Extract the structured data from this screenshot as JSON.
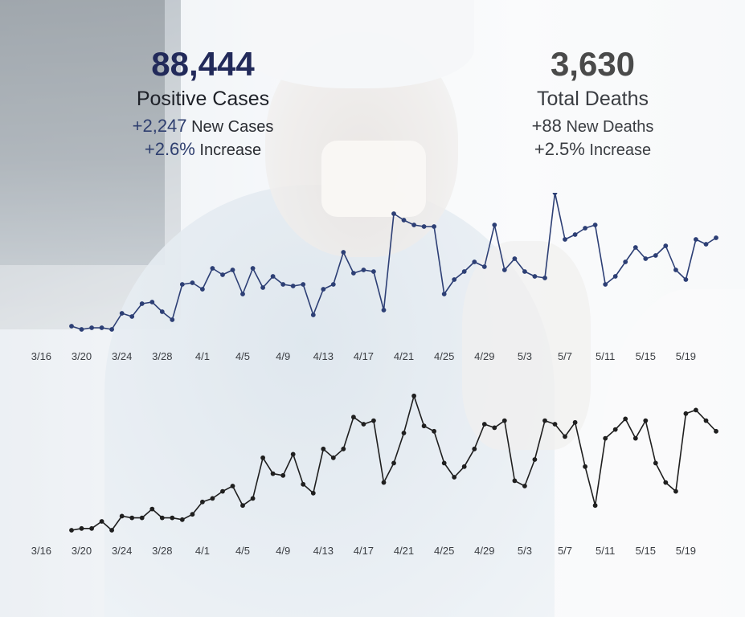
{
  "stats": {
    "cases": {
      "total": "88,444",
      "label": "Positive Cases",
      "new_value": "+2,247",
      "new_label": "New Cases",
      "pct_value": "+2.6%",
      "pct_label": "Increase"
    },
    "deaths": {
      "total": "3,630",
      "label": "Total Deaths",
      "new_value": "+88",
      "new_label": "New Deaths",
      "pct_value": "+2.5%",
      "pct_label": "Increase"
    }
  },
  "colors": {
    "cases_line": "#2d3f75",
    "deaths_line": "#1f1f1f",
    "cases_total": "#222a5a"
  },
  "chart_data": [
    {
      "type": "line",
      "title": "",
      "xlabel": "",
      "ylabel": "",
      "grid": false,
      "x_start": "3/19",
      "x_end": "5/22",
      "tick_labels": [
        "3/16",
        "3/20",
        "3/24",
        "3/28",
        "4/1",
        "4/5",
        "4/9",
        "4/13",
        "4/17",
        "4/21",
        "4/25",
        "4/29",
        "5/3",
        "5/7",
        "5/11",
        "5/15",
        "5/19"
      ],
      "values": [
        0.02,
        0.0,
        0.01,
        0.01,
        0.0,
        0.1,
        0.08,
        0.16,
        0.17,
        0.11,
        0.06,
        0.28,
        0.29,
        0.25,
        0.38,
        0.34,
        0.37,
        0.22,
        0.38,
        0.26,
        0.33,
        0.28,
        0.27,
        0.28,
        0.09,
        0.25,
        0.28,
        0.48,
        0.35,
        0.37,
        0.36,
        0.12,
        0.72,
        0.68,
        0.65,
        0.64,
        0.64,
        0.22,
        0.31,
        0.36,
        0.42,
        0.39,
        0.65,
        0.37,
        0.44,
        0.36,
        0.33,
        0.32,
        0.85,
        0.56,
        0.59,
        0.63,
        0.65,
        0.28,
        0.33,
        0.42,
        0.51,
        0.44,
        0.46,
        0.52,
        0.37,
        0.31,
        0.56,
        0.53,
        0.57
      ]
    },
    {
      "type": "line",
      "title": "",
      "xlabel": "",
      "ylabel": "",
      "grid": false,
      "x_start": "3/19",
      "x_end": "5/22",
      "tick_labels": [
        "3/16",
        "3/20",
        "3/24",
        "3/28",
        "4/1",
        "4/5",
        "4/9",
        "4/13",
        "4/17",
        "4/21",
        "4/25",
        "4/29",
        "5/3",
        "5/7",
        "5/11",
        "5/15",
        "5/19"
      ],
      "values": [
        0.0,
        0.01,
        0.01,
        0.05,
        0.0,
        0.08,
        0.07,
        0.07,
        0.12,
        0.07,
        0.07,
        0.06,
        0.09,
        0.16,
        0.18,
        0.22,
        0.25,
        0.14,
        0.18,
        0.41,
        0.32,
        0.31,
        0.43,
        0.26,
        0.21,
        0.46,
        0.41,
        0.46,
        0.64,
        0.6,
        0.62,
        0.27,
        0.38,
        0.55,
        0.76,
        0.59,
        0.56,
        0.38,
        0.3,
        0.36,
        0.46,
        0.6,
        0.58,
        0.62,
        0.28,
        0.25,
        0.4,
        0.62,
        0.6,
        0.53,
        0.61,
        0.36,
        0.14,
        0.52,
        0.57,
        0.63,
        0.52,
        0.62,
        0.38,
        0.27,
        0.22,
        0.66,
        0.68,
        0.62,
        0.56
      ]
    }
  ]
}
